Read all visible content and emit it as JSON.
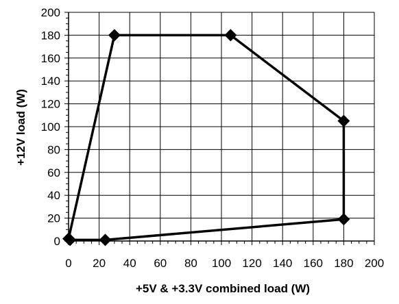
{
  "chart_data": {
    "type": "scatter",
    "title": "",
    "xlabel": "+5V & +3.3V combined load (W)",
    "ylabel": "+12V load (W)",
    "xlim": [
      0,
      200
    ],
    "ylim": [
      0,
      200
    ],
    "x_major_ticks": [
      0,
      20,
      40,
      60,
      80,
      100,
      120,
      140,
      160,
      180,
      200
    ],
    "y_major_ticks": [
      0,
      20,
      40,
      60,
      80,
      100,
      120,
      140,
      160,
      180,
      200
    ],
    "x_minor_step": 5,
    "y_minor_step": 5,
    "grid": true,
    "legend": "none",
    "colors": {
      "line": "#000000",
      "marker": "#000000",
      "grid": "#000000",
      "background": "#ffffff"
    },
    "series": [
      {
        "closed": true,
        "marker": "diamond",
        "points": [
          {
            "x": 0,
            "y": 2
          },
          {
            "x": 30,
            "y": 180
          },
          {
            "x": 106,
            "y": 180
          },
          {
            "x": 180,
            "y": 105
          },
          {
            "x": 180,
            "y": 19
          },
          {
            "x": 24,
            "y": 1
          },
          {
            "x": 1,
            "y": 1
          }
        ]
      }
    ]
  }
}
